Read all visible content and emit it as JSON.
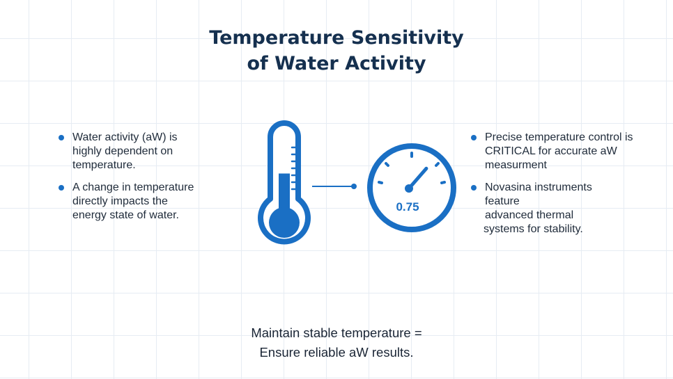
{
  "title": {
    "line1": "Temperature Sensitivity",
    "line2": "of Water Activity"
  },
  "left_bullets": [
    {
      "lines": [
        "Water activity (aW) is",
        "highly dependent on",
        "temperature."
      ]
    },
    {
      "lines": [
        "A change in temperature",
        "directly impacts the",
        "energy state of water."
      ]
    }
  ],
  "right_bullets": [
    {
      "lines": [
        "Precise temperature control is",
        "CRITICAL for accurate aW",
        "measurment"
      ]
    },
    {
      "lines": [
        "Novasina instruments",
        "feature",
        "advanced thermal",
        "systems for stability."
      ]
    }
  ],
  "gauge": {
    "value_label": "0.75",
    "level": 0.75
  },
  "thermometer": {
    "fill_level": 0.55
  },
  "footer": {
    "line1": "Maintain stable temperature =",
    "line2": "Ensure reliable aW results."
  },
  "colors": {
    "accent": "#1a6fc4",
    "title": "#15304f"
  },
  "icons": [
    "thermometer-icon",
    "gauge-icon"
  ]
}
